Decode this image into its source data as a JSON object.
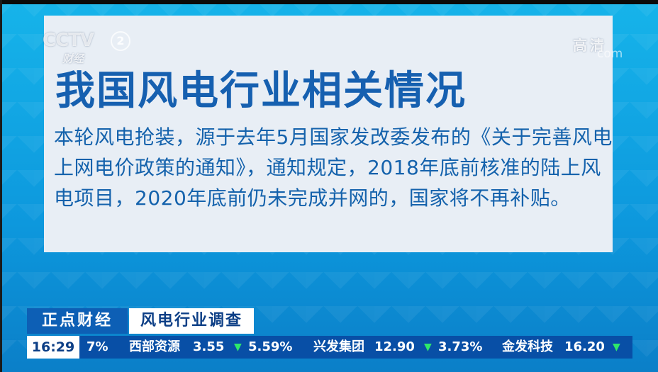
{
  "channel": {
    "logo": "CCTV",
    "number": "2",
    "sub": "财经",
    "hd": "高清",
    "domain": "com"
  },
  "slide": {
    "title": "我国风电行业相关情况",
    "body": "本轮风电抢装，源于去年5月国家发改委发布的《关于完善风电上网电价政策的通知》，通知规定，2018年底前核准的陆上风电项目，2020年底前仍未完成并网的，国家将不再补贴。"
  },
  "lower_third": {
    "program": "正点财经",
    "topic": "风电行业调查",
    "time": "16:29",
    "ticker": {
      "lead_fragment": "7%",
      "stocks": [
        {
          "name": "西部资源",
          "price": "3.55",
          "change": "5.59%",
          "direction": "down",
          "arrow": "▼"
        },
        {
          "name": "兴发集团",
          "price": "12.90",
          "change": "3.73%",
          "direction": "down",
          "arrow": "▼"
        },
        {
          "name": "金发科技",
          "price": "16.20",
          "change": "",
          "direction": "down",
          "arrow": "▼"
        }
      ]
    }
  },
  "colors": {
    "title": "#1660b0",
    "body_text": "#1462ac",
    "panel": "#e8eef5",
    "ticker_bg": "#084fa6",
    "down_arrow": "#2ee86a"
  }
}
